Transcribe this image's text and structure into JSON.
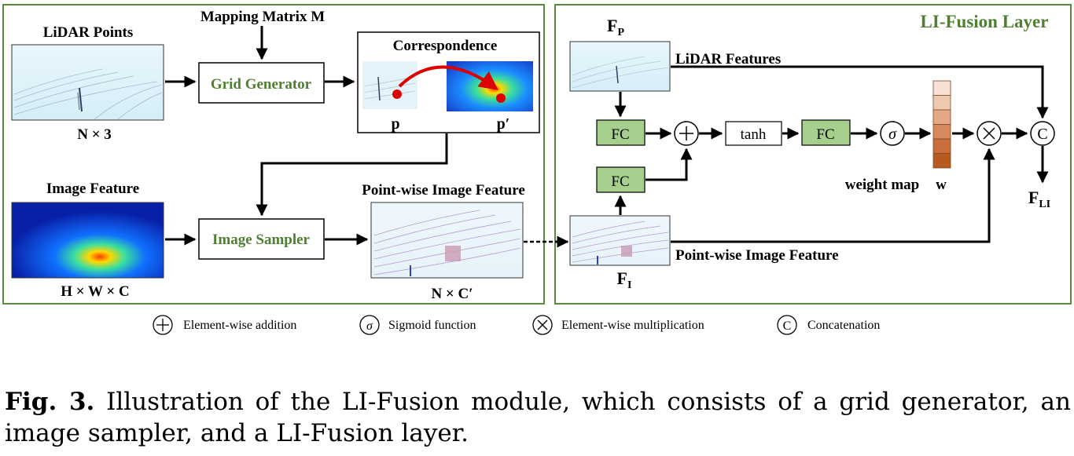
{
  "title": "LI-Fusion Layer",
  "left_panel": {
    "lidar_points": {
      "label": "LiDAR Points",
      "dim": "N × 3"
    },
    "mapping_matrix": "Mapping Matrix M",
    "grid_generator": "Grid Generator",
    "correspondence": {
      "label": "Correspondence",
      "p": "p",
      "p_prime": "p′"
    },
    "image_feature": {
      "label": "Image Feature",
      "dim": "H × W × C"
    },
    "image_sampler": "Image Sampler",
    "pointwise_feature": {
      "label": "Point-wise Image Feature",
      "dim": "N × C′"
    }
  },
  "right_panel": {
    "fp_label": "F",
    "fp_sub": "P",
    "lidar_features": "LiDAR Features",
    "fc_label": "FC",
    "tanh_label": "tanh",
    "sigma_symbol": "σ",
    "plus_symbol": "+",
    "times_symbol": "×",
    "concat_symbol": "C",
    "weight_map": "weight map",
    "w_symbol": "w",
    "pointwise_feature": "Point-wise Image Feature",
    "fi_label": "F",
    "fi_sub": "I",
    "fli_label": "F",
    "fli_sub": "LI"
  },
  "legend": [
    {
      "symbol": "+",
      "text": "Element-wise addition"
    },
    {
      "symbol": "σ",
      "text": "Sigmoid function"
    },
    {
      "symbol": "×",
      "text": "Element-wise multiplication"
    },
    {
      "symbol": "C",
      "text": "Concatenation"
    }
  ],
  "weight_map_colors": [
    "#f6e1d6",
    "#efc8b0",
    "#e4a884",
    "#d8895c",
    "#c96d3a",
    "#b65a20"
  ],
  "colors": {
    "panel_border": "#5a8a3c",
    "fc_fill": "#a6cf8e",
    "green_text": "#4f7f31",
    "arrow_red": "#dd0000"
  },
  "caption": {
    "fig": "Fig. 3.",
    "text": " Illustration of the LI-Fusion module, which consists of a grid generator, an image sampler, and a LI-Fusion layer."
  }
}
